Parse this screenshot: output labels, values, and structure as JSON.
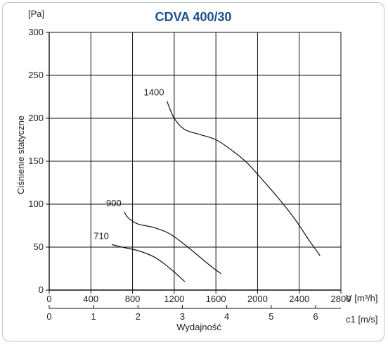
{
  "chart_data": {
    "type": "line",
    "title": "CDVA 400/30",
    "ylabel": "Ciśnienie statyczne",
    "yunit": "[Pa]",
    "xlabel": "Wydajność",
    "xunit_primary": "V [m³/h]",
    "xunit_secondary": "c1 [m/s]",
    "xlim": [
      0,
      2800
    ],
    "ylim": [
      0,
      300
    ],
    "x_ticks": [
      0,
      400,
      800,
      1200,
      1600,
      2000,
      2400,
      2800
    ],
    "y_ticks": [
      0,
      50,
      100,
      150,
      200,
      250,
      300
    ],
    "secondary_ticks": [
      0,
      1,
      2,
      3,
      4,
      5,
      6
    ],
    "grid": true,
    "series": [
      {
        "name": "1400",
        "x": [
          1130,
          1200,
          1300,
          1450,
          1600,
          1750,
          1900,
          2050,
          2200,
          2350,
          2500,
          2600
        ],
        "y": [
          220,
          200,
          187,
          181,
          175,
          163,
          148,
          128,
          107,
          84,
          57,
          40
        ]
      },
      {
        "name": "900",
        "x": [
          720,
          760,
          850,
          1000,
          1150,
          1300,
          1450,
          1550,
          1650
        ],
        "y": [
          91,
          84,
          77,
          73,
          66,
          53,
          38,
          28,
          19
        ]
      },
      {
        "name": "710",
        "x": [
          600,
          700,
          850,
          1000,
          1100,
          1200,
          1300
        ],
        "y": [
          53,
          50,
          46,
          39,
          31,
          21,
          10
        ]
      }
    ]
  }
}
